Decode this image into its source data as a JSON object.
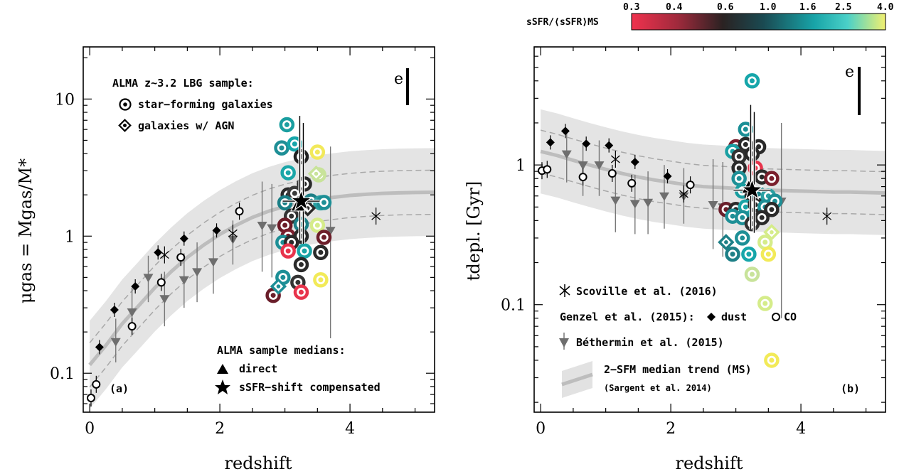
{
  "chart_data": [
    {
      "type": "scatter",
      "panel_label": "(a)",
      "xlabel": "redshift",
      "ylabel": "μgas = Mgas/M*",
      "xlim": [
        -0.1,
        5.3
      ],
      "ylim": [
        0.052,
        24
      ],
      "yscale": "log",
      "x_ticks": [
        "0",
        "2",
        "4"
      ],
      "y_ticks": [
        "0.1",
        "1",
        "10"
      ],
      "legend_title": "ALMA z~3.2 LBG sample:",
      "legend_items": [
        "star−forming galaxies",
        "galaxies w/ AGN"
      ],
      "medians_title": "ALMA sample medians:",
      "medians_items": [
        "direct",
        "sSFR−shift compensated"
      ],
      "error_label": "e",
      "trend": {
        "x": [
          0,
          0.25,
          0.5,
          0.75,
          1,
          1.25,
          1.5,
          1.75,
          2,
          2.25,
          2.5,
          2.75,
          3,
          3.25,
          3.5,
          3.75,
          4,
          4.25,
          4.5,
          4.75,
          5,
          5.3
        ],
        "median": [
          0.115,
          0.16,
          0.23,
          0.31,
          0.42,
          0.55,
          0.7,
          0.86,
          1.03,
          1.2,
          1.37,
          1.52,
          1.65,
          1.76,
          1.85,
          1.92,
          1.98,
          2.02,
          2.05,
          2.07,
          2.08,
          2.09
        ],
        "inner_upper_factor": 1.45,
        "inner_lower_factor": 0.69,
        "band_upper_factor": 2.1,
        "band_lower_factor": 0.48
      },
      "genzel_dust": [
        {
          "x": 0.15,
          "y": 0.155
        },
        {
          "x": 0.38,
          "y": 0.29
        },
        {
          "x": 0.7,
          "y": 0.43
        },
        {
          "x": 1.05,
          "y": 0.76
        },
        {
          "x": 1.45,
          "y": 0.96
        },
        {
          "x": 1.95,
          "y": 1.1
        }
      ],
      "genzel_co": [
        {
          "x": 0.02,
          "y": 0.066
        },
        {
          "x": 0.1,
          "y": 0.083
        },
        {
          "x": 0.65,
          "y": 0.22
        },
        {
          "x": 1.1,
          "y": 0.46
        },
        {
          "x": 1.4,
          "y": 0.7
        },
        {
          "x": 2.3,
          "y": 1.52
        }
      ],
      "bethermin": [
        {
          "x": 0.4,
          "y": 0.17,
          "hi": 0.25,
          "lo": 0.12
        },
        {
          "x": 0.65,
          "y": 0.28,
          "hi": 0.42,
          "lo": 0.19
        },
        {
          "x": 0.9,
          "y": 0.5,
          "hi": 0.72,
          "lo": 0.33
        },
        {
          "x": 1.15,
          "y": 0.35,
          "hi": 0.55,
          "lo": 0.22
        },
        {
          "x": 1.45,
          "y": 0.48,
          "hi": 0.75,
          "lo": 0.3
        },
        {
          "x": 1.65,
          "y": 0.55,
          "hi": 0.9,
          "lo": 0.33
        },
        {
          "x": 1.9,
          "y": 0.65,
          "hi": 1.1,
          "lo": 0.38
        },
        {
          "x": 2.2,
          "y": 0.95,
          "hi": 1.3,
          "lo": 0.62
        },
        {
          "x": 2.65,
          "y": 1.2,
          "hi": 2.5,
          "lo": 0.55
        },
        {
          "x": 2.8,
          "y": 1.15,
          "hi": 2.4,
          "lo": 0.5
        },
        {
          "x": 3.7,
          "y": 1.1,
          "hi": 4.5,
          "lo": 0.18
        }
      ],
      "scoville": [
        {
          "x": 1.15,
          "y": 0.73
        },
        {
          "x": 2.2,
          "y": 1.05
        },
        {
          "x": 4.4,
          "y": 1.4
        }
      ],
      "lbg": [
        {
          "x": 3.03,
          "y": 6.5,
          "c": "#1a9ea0"
        },
        {
          "x": 2.95,
          "y": 4.4,
          "c": "#1e8f96"
        },
        {
          "x": 3.15,
          "y": 4.7,
          "c": "#16a6aa"
        },
        {
          "x": 3.25,
          "y": 3.8,
          "c": "#222"
        },
        {
          "x": 3.5,
          "y": 4.1,
          "c": "#f2e95a"
        },
        {
          "x": 3.05,
          "y": 2.9,
          "c": "#1aa6a8"
        },
        {
          "x": 3.3,
          "y": 2.4,
          "c": "#2a2a2a"
        },
        {
          "x": 3.52,
          "y": 2.8,
          "c": "#c8e39a"
        },
        {
          "x": 3.05,
          "y": 2.0,
          "c": "#2b2b2b"
        },
        {
          "x": 3.15,
          "y": 2.05,
          "c": "#3a3a3a"
        },
        {
          "x": 3.0,
          "y": 1.75,
          "c": "#1a7f86"
        },
        {
          "x": 3.4,
          "y": 1.8,
          "c": "#1e7f86"
        },
        {
          "x": 3.55,
          "y": 1.75,
          "c": "#2aa0a3"
        },
        {
          "x": 3.6,
          "y": 1.76,
          "c": "#1d8f96"
        },
        {
          "x": 3.1,
          "y": 1.4,
          "c": "#333"
        },
        {
          "x": 3.0,
          "y": 1.2,
          "c": "#6a1a26"
        },
        {
          "x": 3.25,
          "y": 1.22,
          "c": "#1d8088"
        },
        {
          "x": 3.5,
          "y": 1.2,
          "c": "#d5ec8a"
        },
        {
          "x": 3.05,
          "y": 1.0,
          "c": "#7a1e2c"
        },
        {
          "x": 3.25,
          "y": 1.0,
          "c": "#2a2a2a"
        },
        {
          "x": 3.6,
          "y": 0.98,
          "c": "#6c1e2a"
        },
        {
          "x": 2.97,
          "y": 0.9,
          "c": "#1d8f96"
        },
        {
          "x": 3.1,
          "y": 0.9,
          "c": "#2a2a2a"
        },
        {
          "x": 3.05,
          "y": 0.78,
          "c": "#e8344c"
        },
        {
          "x": 3.3,
          "y": 0.78,
          "c": "#1aa4a6"
        },
        {
          "x": 3.55,
          "y": 0.76,
          "c": "#2a2a2a"
        },
        {
          "x": 3.25,
          "y": 0.62,
          "c": "#2a2a2a"
        },
        {
          "x": 2.97,
          "y": 0.5,
          "c": "#1d8f96"
        },
        {
          "x": 3.55,
          "y": 0.48,
          "c": "#f2ea58"
        },
        {
          "x": 3.2,
          "y": 0.46,
          "c": "#333"
        },
        {
          "x": 2.82,
          "y": 0.37,
          "c": "#6a1e2a"
        },
        {
          "x": 3.25,
          "y": 0.39,
          "c": "#e8344c"
        }
      ],
      "agn": [
        {
          "x": 2.9,
          "y": 0.43,
          "c": "#1d8f96"
        },
        {
          "x": 3.48,
          "y": 2.85,
          "c": "#c8e39a"
        },
        {
          "x": 3.35,
          "y": 1.6,
          "c": "#2a2a2a"
        }
      ],
      "median_direct": {
        "x": 3.2,
        "y": 1.7
      },
      "median_shift": {
        "x": 3.25,
        "y": 1.8
      }
    },
    {
      "type": "scatter",
      "panel_label": "(b)",
      "xlabel": "redshift",
      "ylabel": "tdepl. [Gyr]",
      "xlim": [
        -0.1,
        5.3
      ],
      "ylim": [
        0.017,
        7.0
      ],
      "yscale": "log",
      "x_ticks": [
        "0",
        "2",
        "4"
      ],
      "y_ticks": [
        "0.1",
        "1"
      ],
      "error_label": "e",
      "legend_items": [
        "Scoville et al. (2016)",
        "Genzel et al. (2015):",
        "dust",
        "CO",
        "Béthermin et al. (2015)",
        "2−SFM median trend (MS)",
        "(Sargent et al. 2014)"
      ],
      "trend": {
        "x": [
          0,
          0.25,
          0.5,
          0.75,
          1,
          1.25,
          1.5,
          1.75,
          2,
          2.25,
          2.5,
          2.75,
          3,
          3.25,
          3.5,
          3.75,
          4,
          4.25,
          4.5,
          4.75,
          5,
          5.3
        ],
        "median": [
          1.25,
          1.17,
          1.08,
          1.0,
          0.93,
          0.87,
          0.82,
          0.78,
          0.75,
          0.72,
          0.7,
          0.69,
          0.68,
          0.67,
          0.66,
          0.655,
          0.65,
          0.645,
          0.64,
          0.64,
          0.635,
          0.63
        ],
        "inner_upper_factor": 1.42,
        "inner_lower_factor": 0.7,
        "band_upper_factor": 2.0,
        "band_lower_factor": 0.5
      },
      "genzel_dust": [
        {
          "x": 0.15,
          "y": 1.45
        },
        {
          "x": 0.38,
          "y": 1.75
        },
        {
          "x": 0.7,
          "y": 1.42
        },
        {
          "x": 1.05,
          "y": 1.38
        },
        {
          "x": 1.45,
          "y": 1.05
        },
        {
          "x": 1.95,
          "y": 0.83
        }
      ],
      "genzel_co": [
        {
          "x": 0.02,
          "y": 0.91
        },
        {
          "x": 0.1,
          "y": 0.93
        },
        {
          "x": 0.65,
          "y": 0.82
        },
        {
          "x": 1.1,
          "y": 0.87
        },
        {
          "x": 1.4,
          "y": 0.74
        },
        {
          "x": 2.3,
          "y": 0.72
        }
      ],
      "bethermin": [
        {
          "x": 0.4,
          "y": 1.2,
          "hi": 1.8,
          "lo": 0.75
        },
        {
          "x": 0.65,
          "y": 1.0,
          "hi": 1.4,
          "lo": 0.6
        },
        {
          "x": 0.9,
          "y": 1.0,
          "hi": 1.5,
          "lo": 0.6
        },
        {
          "x": 1.15,
          "y": 0.56,
          "hi": 0.9,
          "lo": 0.33
        },
        {
          "x": 1.45,
          "y": 0.53,
          "hi": 0.85,
          "lo": 0.32
        },
        {
          "x": 1.65,
          "y": 0.54,
          "hi": 0.9,
          "lo": 0.32
        },
        {
          "x": 1.9,
          "y": 0.6,
          "hi": 1.0,
          "lo": 0.35
        },
        {
          "x": 2.2,
          "y": 0.6,
          "hi": 0.95,
          "lo": 0.38
        },
        {
          "x": 2.65,
          "y": 0.52,
          "hi": 1.1,
          "lo": 0.25
        },
        {
          "x": 2.8,
          "y": 0.5,
          "hi": 1.05,
          "lo": 0.22
        },
        {
          "x": 3.7,
          "y": 0.55,
          "hi": 2.0,
          "lo": 0.08
        }
      ],
      "scoville": [
        {
          "x": 1.15,
          "y": 1.1
        },
        {
          "x": 2.2,
          "y": 0.62
        },
        {
          "x": 4.4,
          "y": 0.43
        }
      ],
      "lbg": [
        {
          "x": 3.25,
          "y": 4.0,
          "c": "#16a6aa"
        },
        {
          "x": 3.15,
          "y": 1.8,
          "c": "#1a8f96"
        },
        {
          "x": 3.0,
          "y": 1.35,
          "c": "#7a1e2c"
        },
        {
          "x": 3.15,
          "y": 1.4,
          "c": "#2a2a2a"
        },
        {
          "x": 3.35,
          "y": 1.35,
          "c": "#2a2a2a"
        },
        {
          "x": 2.95,
          "y": 1.25,
          "c": "#1aa0a3"
        },
        {
          "x": 3.05,
          "y": 1.15,
          "c": "#333"
        },
        {
          "x": 3.25,
          "y": 1.2,
          "c": "#2a2a2a"
        },
        {
          "x": 3.05,
          "y": 0.95,
          "c": "#2a2a2a"
        },
        {
          "x": 3.3,
          "y": 0.95,
          "c": "#e8344c"
        },
        {
          "x": 3.05,
          "y": 0.8,
          "c": "#1d8f96"
        },
        {
          "x": 3.4,
          "y": 0.82,
          "c": "#2a2a2a"
        },
        {
          "x": 3.55,
          "y": 0.8,
          "c": "#7a1e2c"
        },
        {
          "x": 3.1,
          "y": 0.65,
          "c": "#1a9ea0"
        },
        {
          "x": 3.25,
          "y": 0.6,
          "c": "#2a2a2a"
        },
        {
          "x": 3.35,
          "y": 0.62,
          "c": "#1d7f86"
        },
        {
          "x": 3.5,
          "y": 0.6,
          "c": "#2aa0a3"
        },
        {
          "x": 3.6,
          "y": 0.55,
          "c": "#1d8f96"
        },
        {
          "x": 2.85,
          "y": 0.48,
          "c": "#6a1e2a"
        },
        {
          "x": 3.0,
          "y": 0.48,
          "c": "#2a2a2a"
        },
        {
          "x": 3.15,
          "y": 0.5,
          "c": "#1aa4a6"
        },
        {
          "x": 3.3,
          "y": 0.52,
          "c": "#2a2a2a"
        },
        {
          "x": 3.45,
          "y": 0.5,
          "c": "#1d8f96"
        },
        {
          "x": 2.95,
          "y": 0.43,
          "c": "#1d8f96"
        },
        {
          "x": 3.1,
          "y": 0.42,
          "c": "#1d8f96"
        },
        {
          "x": 3.25,
          "y": 0.38,
          "c": "#333"
        },
        {
          "x": 3.4,
          "y": 0.42,
          "c": "#2a2a2a"
        },
        {
          "x": 3.1,
          "y": 0.3,
          "c": "#1d8f96"
        },
        {
          "x": 3.45,
          "y": 0.28,
          "c": "#d5ec8a"
        },
        {
          "x": 2.95,
          "y": 0.23,
          "c": "#1d7f86"
        },
        {
          "x": 3.2,
          "y": 0.23,
          "c": "#16a6aa"
        },
        {
          "x": 3.5,
          "y": 0.23,
          "c": "#f2ea58"
        },
        {
          "x": 3.25,
          "y": 0.165,
          "c": "#c8e39a"
        },
        {
          "x": 3.45,
          "y": 0.102,
          "c": "#d5ec8a"
        },
        {
          "x": 3.55,
          "y": 0.04,
          "c": "#f2ea58"
        },
        {
          "x": 3.55,
          "y": 0.48,
          "c": "#2a2a2a"
        }
      ],
      "agn": [
        {
          "x": 2.85,
          "y": 0.28,
          "c": "#1d7f86"
        },
        {
          "x": 3.55,
          "y": 0.33,
          "c": "#d5ec8a"
        }
      ],
      "median_direct": {
        "x": 3.2,
        "y": 0.7
      },
      "median_shift": {
        "x": 3.25,
        "y": 0.66
      }
    }
  ],
  "colorbar": {
    "label": "sSFR/⟨sSFR⟩MS",
    "ticks": [
      "0.3",
      "0.4",
      "0.6",
      "1.0",
      "1.6",
      "2.5",
      "4.0"
    ],
    "colors": [
      "#f0324e",
      "#a02a3c",
      "#2a2222",
      "#1a4a52",
      "#18a4a8",
      "#4ad0c8",
      "#f2f070"
    ]
  }
}
